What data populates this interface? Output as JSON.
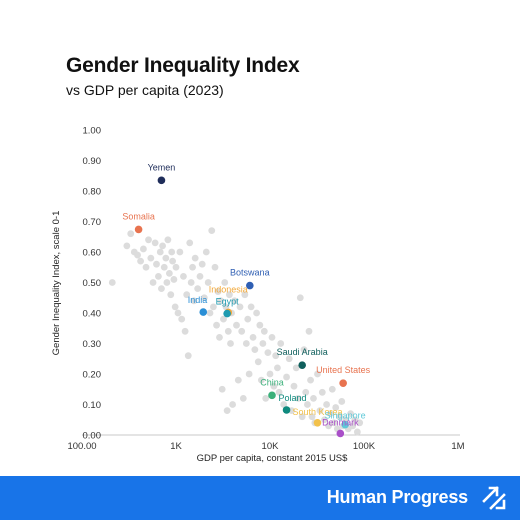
{
  "chart_data": {
    "type": "scatter",
    "title": "Gender Inequality Index",
    "subtitle": "vs GDP per capita (2023)",
    "xlabel": "GDP per capita, constant 2015 US$",
    "ylabel": "Gender Inequality Index, scale 0-1",
    "xscale": "log",
    "xlim": [
      100,
      1000000
    ],
    "ylim": [
      0,
      1
    ],
    "xticks": [
      {
        "value": 100,
        "label": "100.00"
      },
      {
        "value": 1000,
        "label": "1K"
      },
      {
        "value": 10000,
        "label": "10K"
      },
      {
        "value": 100000,
        "label": "100K"
      },
      {
        "value": 1000000,
        "label": "1M"
      }
    ],
    "yticks": [
      {
        "value": 0,
        "label": "0.00"
      },
      {
        "value": 0.1,
        "label": "0.10"
      },
      {
        "value": 0.2,
        "label": "0.20"
      },
      {
        "value": 0.3,
        "label": "0.30"
      },
      {
        "value": 0.4,
        "label": "0.40"
      },
      {
        "value": 0.5,
        "label": "0.50"
      },
      {
        "value": 0.6,
        "label": "0.60"
      },
      {
        "value": 0.7,
        "label": "0.70"
      },
      {
        "value": 0.8,
        "label": "0.80"
      },
      {
        "value": 0.9,
        "label": "0.90"
      },
      {
        "value": 1,
        "label": "1.00"
      }
    ],
    "grid": false,
    "highlighted": [
      {
        "name": "Yemen",
        "x": 700,
        "y": 0.835,
        "color": "#1f2d5a"
      },
      {
        "name": "Somalia",
        "x": 400,
        "y": 0.674,
        "color": "#e8734f"
      },
      {
        "name": "Botswana",
        "x": 6100,
        "y": 0.49,
        "color": "#2f5fb3"
      },
      {
        "name": "India",
        "x": 1950,
        "y": 0.403,
        "color": "#2a8fd6"
      },
      {
        "name": "Indonesia",
        "x": 3600,
        "y": 0.402,
        "color": "#f2a93b"
      },
      {
        "name": "Egypt",
        "x": 3500,
        "y": 0.398,
        "color": "#1f9bb0"
      },
      {
        "name": "Saudi Arabia",
        "x": 22000,
        "y": 0.229,
        "color": "#0f5f5c"
      },
      {
        "name": "United States",
        "x": 60000,
        "y": 0.17,
        "color": "#e8734f"
      },
      {
        "name": "China",
        "x": 10500,
        "y": 0.13,
        "color": "#3bb07a"
      },
      {
        "name": "Poland",
        "x": 15000,
        "y": 0.082,
        "color": "#0f8a7e"
      },
      {
        "name": "South Korea",
        "x": 32000,
        "y": 0.04,
        "color": "#f2c14b"
      },
      {
        "name": "Singapore",
        "x": 63000,
        "y": 0.034,
        "color": "#5fc9d8"
      },
      {
        "name": "Denmark",
        "x": 56000,
        "y": 0.005,
        "color": "#a94fc8"
      }
    ],
    "others": [
      [
        210,
        0.5
      ],
      [
        300,
        0.62
      ],
      [
        330,
        0.66
      ],
      [
        360,
        0.6
      ],
      [
        390,
        0.59
      ],
      [
        420,
        0.57
      ],
      [
        450,
        0.61
      ],
      [
        480,
        0.55
      ],
      [
        510,
        0.64
      ],
      [
        540,
        0.58
      ],
      [
        570,
        0.5
      ],
      [
        600,
        0.63
      ],
      [
        620,
        0.56
      ],
      [
        650,
        0.52
      ],
      [
        680,
        0.6
      ],
      [
        700,
        0.48
      ],
      [
        720,
        0.62
      ],
      [
        750,
        0.55
      ],
      [
        780,
        0.58
      ],
      [
        800,
        0.5
      ],
      [
        820,
        0.64
      ],
      [
        850,
        0.53
      ],
      [
        880,
        0.46
      ],
      [
        900,
        0.6
      ],
      [
        920,
        0.57
      ],
      [
        950,
        0.51
      ],
      [
        980,
        0.42
      ],
      [
        1000,
        0.55
      ],
      [
        1050,
        0.4
      ],
      [
        1100,
        0.6
      ],
      [
        1150,
        0.38
      ],
      [
        1200,
        0.52
      ],
      [
        1250,
        0.34
      ],
      [
        1300,
        0.46
      ],
      [
        1350,
        0.26
      ],
      [
        1400,
        0.63
      ],
      [
        1450,
        0.5
      ],
      [
        1500,
        0.55
      ],
      [
        1550,
        0.44
      ],
      [
        1600,
        0.58
      ],
      [
        1700,
        0.48
      ],
      [
        1800,
        0.52
      ],
      [
        1900,
        0.56
      ],
      [
        2000,
        0.45
      ],
      [
        2100,
        0.6
      ],
      [
        2200,
        0.5
      ],
      [
        2300,
        0.4
      ],
      [
        2400,
        0.67
      ],
      [
        2500,
        0.42
      ],
      [
        2600,
        0.55
      ],
      [
        2700,
        0.36
      ],
      [
        2800,
        0.47
      ],
      [
        2900,
        0.32
      ],
      [
        3000,
        0.44
      ],
      [
        3100,
        0.15
      ],
      [
        3200,
        0.38
      ],
      [
        3300,
        0.5
      ],
      [
        3400,
        0.42
      ],
      [
        3500,
        0.08
      ],
      [
        3600,
        0.34
      ],
      [
        3700,
        0.46
      ],
      [
        3800,
        0.3
      ],
      [
        3900,
        0.4
      ],
      [
        4000,
        0.1
      ],
      [
        4200,
        0.44
      ],
      [
        4400,
        0.36
      ],
      [
        4600,
        0.18
      ],
      [
        4800,
        0.42
      ],
      [
        5000,
        0.34
      ],
      [
        5200,
        0.12
      ],
      [
        5400,
        0.46
      ],
      [
        5600,
        0.3
      ],
      [
        5800,
        0.38
      ],
      [
        6000,
        0.2
      ],
      [
        6300,
        0.42
      ],
      [
        6600,
        0.32
      ],
      [
        6900,
        0.28
      ],
      [
        7200,
        0.4
      ],
      [
        7500,
        0.24
      ],
      [
        7800,
        0.36
      ],
      [
        8100,
        0.18
      ],
      [
        8400,
        0.3
      ],
      [
        8700,
        0.34
      ],
      [
        9000,
        0.12
      ],
      [
        9500,
        0.27
      ],
      [
        10000,
        0.2
      ],
      [
        10500,
        0.32
      ],
      [
        11000,
        0.16
      ],
      [
        11500,
        0.26
      ],
      [
        12000,
        0.22
      ],
      [
        12500,
        0.14
      ],
      [
        13000,
        0.3
      ],
      [
        14000,
        0.1
      ],
      [
        15000,
        0.19
      ],
      [
        16000,
        0.25
      ],
      [
        17000,
        0.08
      ],
      [
        18000,
        0.16
      ],
      [
        19000,
        0.22
      ],
      [
        20000,
        0.12
      ],
      [
        21000,
        0.45
      ],
      [
        22000,
        0.06
      ],
      [
        23000,
        0.28
      ],
      [
        24000,
        0.14
      ],
      [
        25000,
        0.1
      ],
      [
        26000,
        0.34
      ],
      [
        27000,
        0.18
      ],
      [
        28000,
        0.06
      ],
      [
        29000,
        0.12
      ],
      [
        30000,
        0.04
      ],
      [
        32000,
        0.2
      ],
      [
        34000,
        0.08
      ],
      [
        36000,
        0.14
      ],
      [
        38000,
        0.05
      ],
      [
        40000,
        0.1
      ],
      [
        42000,
        0.03
      ],
      [
        44000,
        0.07
      ],
      [
        46000,
        0.15
      ],
      [
        48000,
        0.04
      ],
      [
        50000,
        0.09
      ],
      [
        52000,
        0.02
      ],
      [
        55000,
        0.06
      ],
      [
        58000,
        0.11
      ],
      [
        60000,
        0.03
      ],
      [
        64000,
        0.05
      ],
      [
        68000,
        0.02
      ],
      [
        72000,
        0.07
      ],
      [
        76000,
        0.03
      ],
      [
        80000,
        0.05
      ],
      [
        85000,
        0.01
      ],
      [
        90000,
        0.04
      ]
    ]
  },
  "footer": {
    "brand": "Human Progress",
    "brand_icon": "expand-arrows-icon",
    "color": "#1874e8"
  }
}
